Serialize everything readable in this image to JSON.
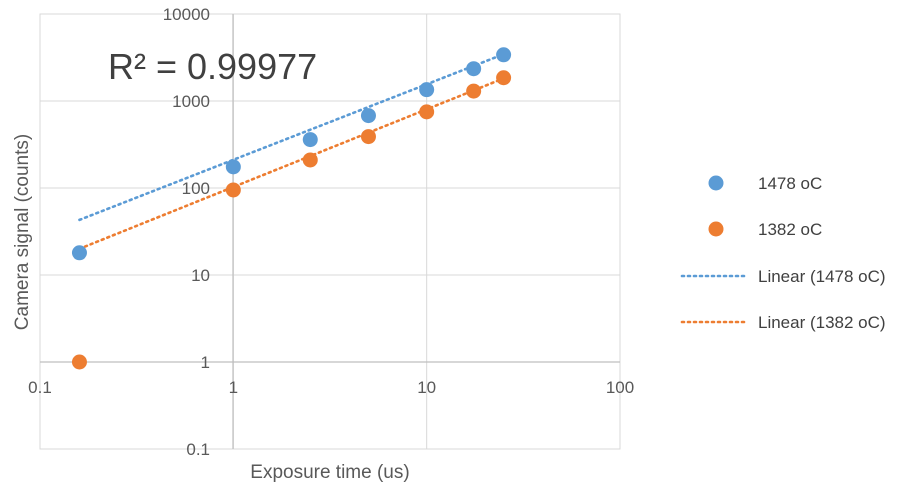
{
  "chart_data": {
    "type": "scatter",
    "xlabel": "Exposure time (us)",
    "ylabel": "Camera signal (counts)",
    "x_scale": "log",
    "y_scale": "log",
    "xlim": [
      0.1,
      100
    ],
    "ylim": [
      0.1,
      10000
    ],
    "x_ticks": [
      0.1,
      1,
      10,
      100
    ],
    "x_tick_labels": [
      "0.1",
      "1",
      "10",
      "100"
    ],
    "y_ticks": [
      0.1,
      1,
      10,
      100,
      1000,
      10000
    ],
    "y_tick_labels": [
      "0.1",
      "1",
      "10",
      "100",
      "1000",
      "10000"
    ],
    "grid": true,
    "legend_position": "right",
    "annotation": "R² = 0.99977",
    "series": [
      {
        "name": "1478 oC",
        "kind": "markers",
        "color": "#5B9BD5",
        "x": [
          0.16,
          1,
          2.5,
          5,
          10,
          17.5,
          25
        ],
        "y": [
          18,
          175,
          360,
          680,
          1350,
          2350,
          3400
        ]
      },
      {
        "name": "1382 oC",
        "kind": "markers",
        "color": "#ED7D31",
        "x": [
          0.16,
          1,
          2.5,
          5,
          10,
          17.5,
          25
        ],
        "y": [
          1,
          95,
          210,
          390,
          750,
          1300,
          1850
        ]
      },
      {
        "name": "Linear (1478 oC)",
        "kind": "trendline",
        "color": "#5B9BD5",
        "x": [
          0.16,
          25
        ],
        "y": [
          43,
          3450
        ]
      },
      {
        "name": "Linear (1382 oC)",
        "kind": "trendline",
        "color": "#ED7D31",
        "x": [
          0.16,
          25
        ],
        "y": [
          20,
          1820
        ]
      }
    ]
  }
}
